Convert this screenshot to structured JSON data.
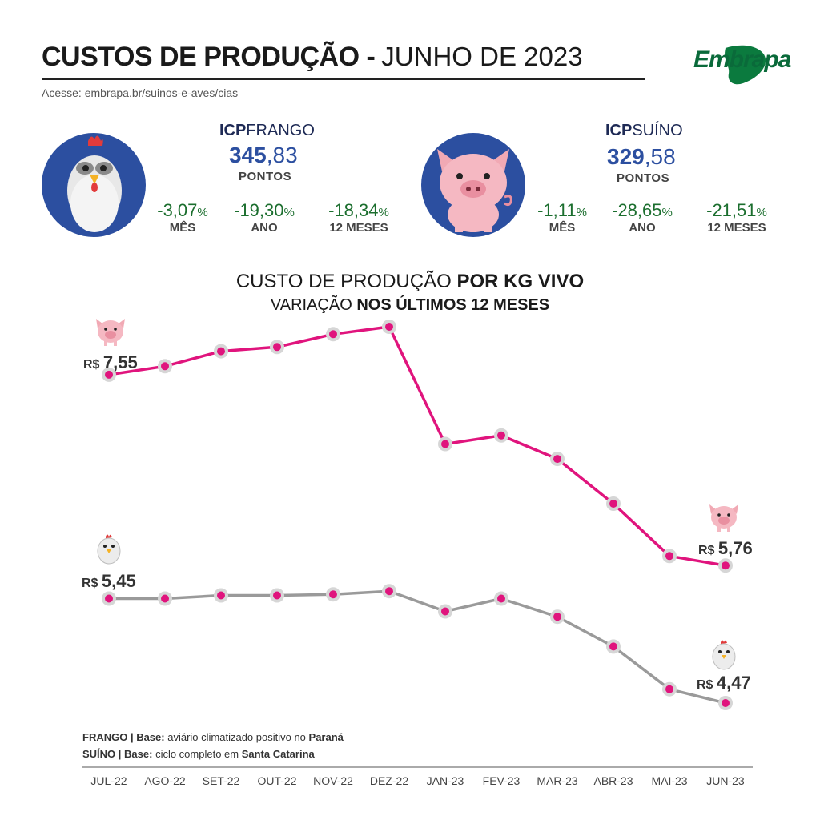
{
  "header": {
    "title_main": "CUSTOS DE PRODUÇÃO -",
    "title_date": "JUNHO DE 2023",
    "link": "Acesse: embrapa.br/suinos-e-aves/cias",
    "logo_text": "Embrapa"
  },
  "frango": {
    "icp_prefix": "ICP",
    "icp_name": "FRANGO",
    "value_int": "345",
    "value_dec": ",83",
    "unit": "PONTOS",
    "variations": [
      {
        "value": "-3,07",
        "pct": "%",
        "label": "MÊS"
      },
      {
        "value": "-19,30",
        "pct": "%",
        "label": "ANO"
      },
      {
        "value": "-18,34",
        "pct": "%",
        "label": "12 MESES"
      }
    ]
  },
  "suino": {
    "icp_prefix": "ICP",
    "icp_name": "SUÍNO",
    "value_int": "329",
    "value_dec": ",58",
    "unit": "PONTOS",
    "variations": [
      {
        "value": "-1,11",
        "pct": "%",
        "label": "MÊS"
      },
      {
        "value": "-28,65",
        "pct": "%",
        "label": "ANO"
      },
      {
        "value": "-21,51",
        "pct": "%",
        "label": "12 MESES"
      }
    ]
  },
  "chart_heading": {
    "line1_normal": "CUSTO DE PRODUÇÃO ",
    "line1_bold": "POR KG VIVO",
    "line2_normal": "VARIAÇÃO ",
    "line2_bold": "NOS ÚLTIMOS 12 MESES"
  },
  "chart_data": {
    "type": "line",
    "categories": [
      "JUL-22",
      "AGO-22",
      "SET-22",
      "OUT-22",
      "NOV-22",
      "DEZ-22",
      "JAN-23",
      "FEV-23",
      "MAR-23",
      "ABR-23",
      "MAI-23",
      "JUN-23"
    ],
    "series": [
      {
        "key": "suino",
        "values": [
          7.55,
          7.63,
          7.77,
          7.81,
          7.93,
          8.0,
          6.9,
          6.98,
          6.76,
          6.34,
          5.85,
          5.76
        ],
        "color": "#e0147d"
      },
      {
        "key": "frango",
        "values": [
          5.45,
          5.45,
          5.48,
          5.48,
          5.49,
          5.52,
          5.33,
          5.45,
          5.28,
          5.0,
          4.6,
          4.47
        ],
        "color": "#9a9a9a"
      }
    ],
    "labels": {
      "suino_start": {
        "prefix": "R$ ",
        "value": "7,55"
      },
      "suino_end": {
        "prefix": "R$ ",
        "value": "5,76"
      },
      "frango_start": {
        "prefix": "R$ ",
        "value": "5,45"
      },
      "frango_end": {
        "prefix": "R$ ",
        "value": "4,47"
      }
    },
    "grid": false
  },
  "notes": {
    "frango_bold": "FRANGO | Base:",
    "frango_normal": " aviário climatizado positivo no ",
    "frango_place": "Paraná",
    "suino_bold": "SUÍNO | Base:",
    "suino_normal": " ciclo completo em ",
    "suino_place": "Santa Catarina"
  },
  "colors": {
    "blue": "#2c4fa0",
    "pink": "#e0147d",
    "gray": "#9a9a9a",
    "green": "#1b6e2e"
  }
}
